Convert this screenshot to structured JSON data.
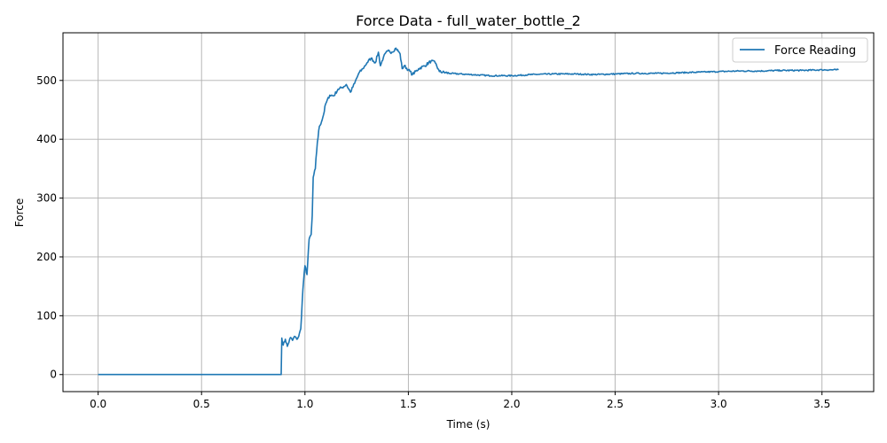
{
  "chart_data": {
    "type": "line",
    "title": "Force Data - full_water_bottle_2",
    "xlabel": "Time (s)",
    "ylabel": "Force",
    "xlim": [
      -0.17,
      3.75
    ],
    "ylim": [
      -29,
      581
    ],
    "xticks": [
      0.0,
      0.5,
      1.0,
      1.5,
      2.0,
      2.5,
      3.0,
      3.5
    ],
    "xtick_labels": [
      "0.0",
      "0.5",
      "1.0",
      "1.5",
      "2.0",
      "2.5",
      "3.0",
      "3.5"
    ],
    "yticks": [
      0,
      100,
      200,
      300,
      400,
      500
    ],
    "ytick_labels": [
      "0",
      "100",
      "200",
      "300",
      "400",
      "500"
    ],
    "grid": true,
    "legend_position": "top-right",
    "series": [
      {
        "name": "Force Reading",
        "color": "#1f77b4",
        "x": [
          0.0,
          0.5,
          0.885,
          0.888,
          0.895,
          0.905,
          0.915,
          0.93,
          0.94,
          0.95,
          0.96,
          0.97,
          0.98,
          0.99,
          1.0,
          1.01,
          1.02,
          1.03,
          1.035,
          1.04,
          1.05,
          1.06,
          1.07,
          1.08,
          1.09,
          1.1,
          1.12,
          1.14,
          1.16,
          1.18,
          1.2,
          1.22,
          1.24,
          1.26,
          1.28,
          1.3,
          1.32,
          1.34,
          1.355,
          1.365,
          1.38,
          1.4,
          1.42,
          1.44,
          1.46,
          1.47,
          1.48,
          1.5,
          1.52,
          1.55,
          1.58,
          1.61,
          1.63,
          1.65,
          1.7,
          1.8,
          1.9,
          2.0,
          2.1,
          2.2,
          2.3,
          2.4,
          2.5,
          2.6,
          2.7,
          2.8,
          2.9,
          3.0,
          3.1,
          3.2,
          3.3,
          3.4,
          3.5,
          3.58
        ],
        "y": [
          0,
          0,
          0,
          62,
          50,
          60,
          48,
          63,
          58,
          65,
          60,
          65,
          78,
          145,
          185,
          170,
          230,
          238,
          270,
          335,
          350,
          395,
          422,
          430,
          442,
          460,
          475,
          474,
          485,
          488,
          493,
          480,
          495,
          512,
          520,
          530,
          538,
          530,
          548,
          525,
          540,
          550,
          548,
          555,
          545,
          520,
          525,
          518,
          510,
          520,
          525,
          533,
          530,
          515,
          512,
          510,
          508,
          508,
          510,
          511,
          511,
          510,
          511,
          512,
          512,
          513,
          514,
          515,
          516,
          516,
          517,
          517,
          518,
          518
        ]
      }
    ]
  }
}
